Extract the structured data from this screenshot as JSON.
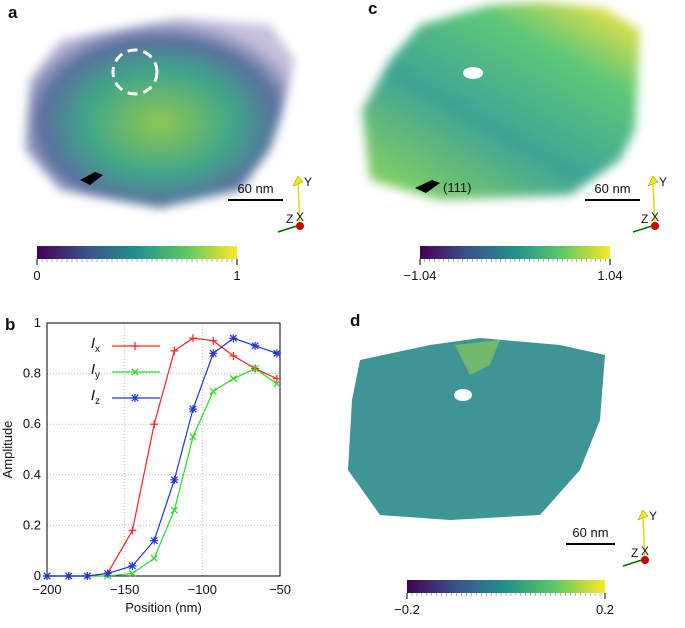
{
  "images": [
    {
      "label": "a",
      "scale_bar": "60 nm",
      "axes": [
        "Y",
        "Z",
        "X"
      ],
      "colorbar": {
        "lim": [
          0,
          1
        ],
        "ticks": [
          0,
          1
        ]
      }
    },
    {
      "label": "c",
      "scale_bar": "60 nm",
      "annotation": "(111)",
      "axes": [
        "Y",
        "Z",
        "X"
      ],
      "colorbar": {
        "lim": [
          -1.04,
          1.04
        ],
        "ticks": [
          {
            "value": -1.04,
            "label": "−1.04"
          },
          1.04
        ]
      }
    },
    {
      "label": "d",
      "scale_bar": "60 nm",
      "axes": [
        "Y",
        "Z",
        "X"
      ],
      "colorbar": {
        "lim": [
          -0.2,
          0.2
        ],
        "ticks": [
          {
            "value": -0.2,
            "label": "−0.2"
          },
          0.2
        ]
      }
    }
  ],
  "chart_data": {
    "type": "line",
    "panel_label": "b",
    "x_label": "Position (nm)",
    "y_label": "Amplitude",
    "x": [
      -200,
      -186,
      -174,
      -161,
      -145,
      -131,
      -118,
      -106,
      -93,
      -80,
      -66,
      -52
    ],
    "series": [
      {
        "name": "Ix",
        "color": "#ff2020",
        "marker": "+",
        "values": [
          0,
          0,
          0,
          0.01,
          0.18,
          0.6,
          0.89,
          0.94,
          0.93,
          0.87,
          0.82,
          0.78
        ]
      },
      {
        "name": "Iy",
        "color": "#22dd22",
        "marker": "x",
        "values": [
          0,
          0,
          0,
          0,
          0.01,
          0.07,
          0.26,
          0.55,
          0.73,
          0.78,
          0.82,
          0.76
        ]
      },
      {
        "name": "Iz",
        "color": "#2233dd",
        "marker": "*",
        "values": [
          0,
          0,
          0,
          0.01,
          0.04,
          0.14,
          0.38,
          0.66,
          0.88,
          0.94,
          0.91,
          0.88
        ]
      }
    ],
    "xlim": [
      -200,
      -50
    ],
    "ylim": [
      0,
      1
    ],
    "xticks": [
      {
        "value": -200,
        "label": "−200"
      },
      {
        "value": -150,
        "label": "−150"
      },
      {
        "value": -100,
        "label": "−100"
      },
      {
        "value": -50,
        "label": "−50"
      }
    ],
    "yticks": [
      0,
      0.2,
      0.4,
      0.6,
      0.8,
      1
    ],
    "grid": true
  }
}
